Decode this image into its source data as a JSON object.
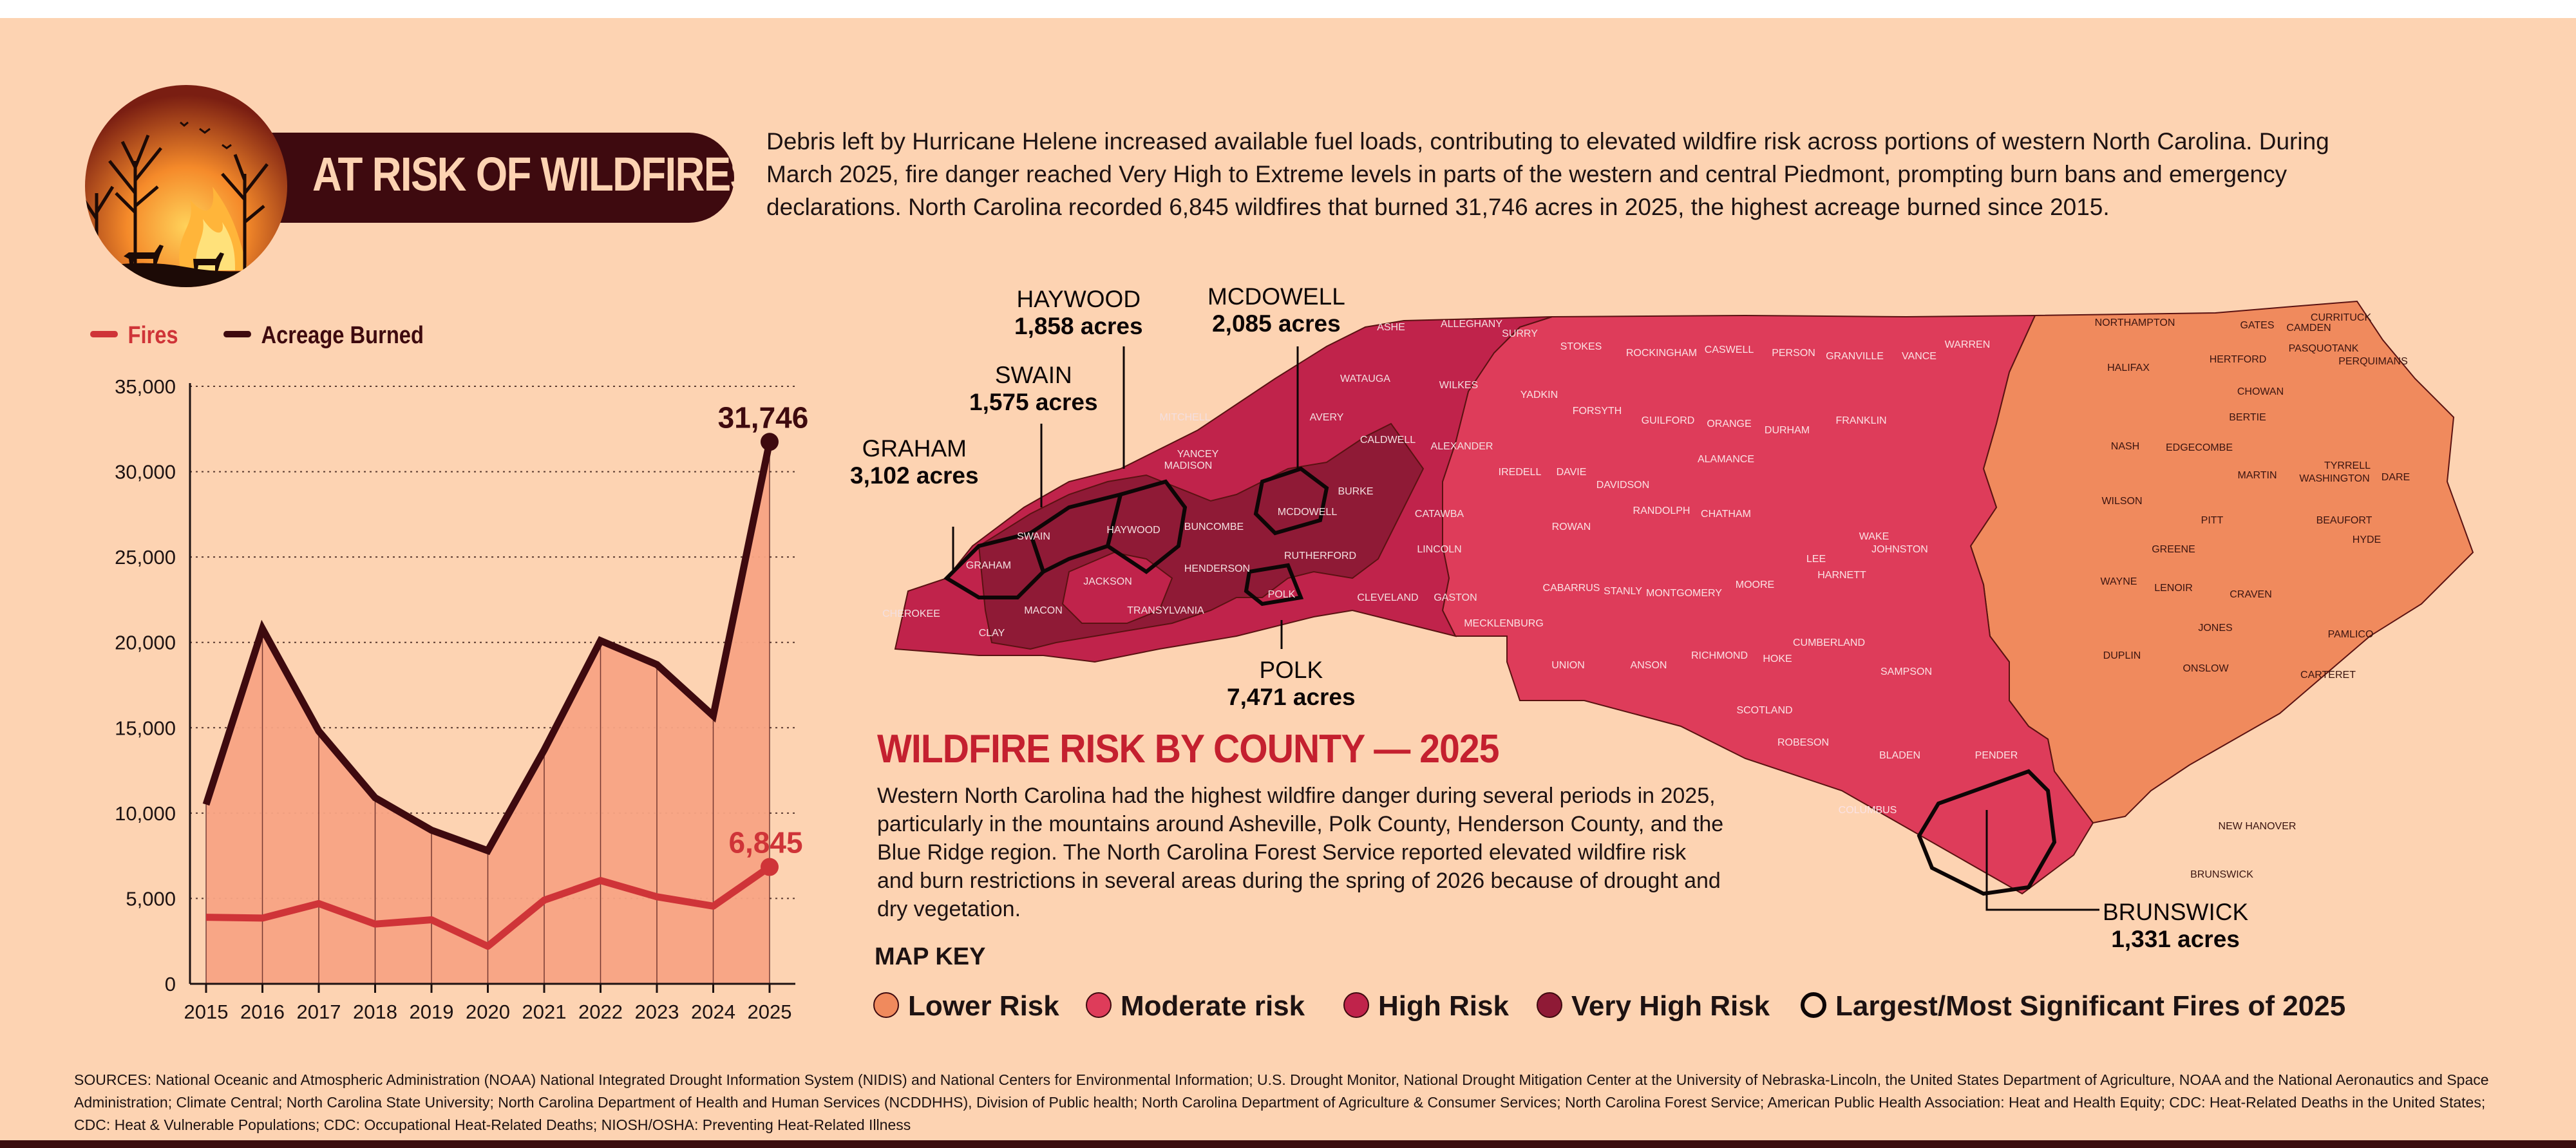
{
  "header": {
    "title": "AT RISK OF WILDFIRES",
    "intro": "Debris left by Hurricane Helene increased available fuel loads, contributing to elevated wildfire risk across portions of western North Carolina. During March 2025, fire danger reached Very High to Extreme levels in parts of the western and central Piedmont, prompting burn bans and emergency declarations. North Carolina recorded 6,845 wildfires that burned 31,746 acres in 2025, the highest acreage burned since 2015."
  },
  "legend": {
    "fires_label": "Fires",
    "acreage_label": "Acreage Burned"
  },
  "colors": {
    "fires": "#cf3438",
    "acreage": "#3e0a0f",
    "area_fill": "#f8a384",
    "lower": "#f08a5d",
    "moderate": "#de3c5a",
    "high": "#c0234b",
    "very_high": "#8f1a36",
    "background": "#fdd3b2"
  },
  "chart_data": {
    "type": "line",
    "x": [
      "2015",
      "2016",
      "2017",
      "2018",
      "2019",
      "2020",
      "2021",
      "2022",
      "2023",
      "2024",
      "2025"
    ],
    "series": [
      {
        "name": "Fires",
        "values": [
          3900,
          3850,
          4700,
          3500,
          3750,
          2200,
          4900,
          6050,
          5100,
          4550,
          6845
        ]
      },
      {
        "name": "Acreage Burned",
        "values": [
          10500,
          20800,
          14800,
          10900,
          9000,
          7800,
          13700,
          20100,
          18700,
          15700,
          31746
        ]
      }
    ],
    "y_ticks": [
      "0",
      "5,000",
      "10,000",
      "15,000",
      "20,000",
      "25,000",
      "30,000",
      "35,000"
    ],
    "ylim": [
      0,
      35000
    ],
    "grid": "horizontal dotted",
    "end_labels": {
      "fires": "6,845",
      "acreage": "31,746"
    },
    "area_under": "Acreage Burned"
  },
  "map": {
    "callouts": [
      {
        "county": "HAYWOOD",
        "acres": "1,858 acres"
      },
      {
        "county": "MCDOWELL",
        "acres": "2,085 acres"
      },
      {
        "county": "SWAIN",
        "acres": "1,575 acres"
      },
      {
        "county": "GRAHAM",
        "acres": "3,102 acres"
      },
      {
        "county": "POLK",
        "acres": "7,471 acres"
      },
      {
        "county": "BRUNSWICK",
        "acres": "1,331 acres"
      }
    ],
    "west_labels": [
      "GRAHAM",
      "SWAIN",
      "HAYWOOD",
      "CHEROKEE",
      "CLAY",
      "MACON",
      "JACKSON",
      "TRANSYLVANIA",
      "HENDERSON",
      "BUNCOMBE",
      "MADISON",
      "YANCEY",
      "MITCHELL",
      "AVERY",
      "MCDOWELL",
      "BURKE",
      "RUTHERFORD",
      "POLK",
      "CLEVELAND",
      "GASTON",
      "LINCOLN",
      "CATAWBA",
      "CALDWELL",
      "WATAUGA",
      "ASHE",
      "ALLEGHANY",
      "WILKES",
      "SURRY",
      "ALEXANDER"
    ],
    "central_labels": [
      "STOKES",
      "ROCKINGHAM",
      "CASWELL",
      "PERSON",
      "GRANVILLE",
      "VANCE",
      "WARREN",
      "YADKIN",
      "FORSYTH",
      "GUILFORD",
      "ALAMANCE",
      "ORANGE",
      "DURHAM",
      "FRANKLIN",
      "IREDELL",
      "DAVIE",
      "DAVIDSON",
      "RANDOLPH",
      "CHATHAM",
      "WAKE",
      "ROWAN",
      "CABARRUS",
      "STANLY",
      "MONTGOMERY",
      "MOORE",
      "LEE",
      "HARNETT",
      "JOHNSTON",
      "MECKLENBURG",
      "UNION",
      "ANSON",
      "RICHMOND",
      "HOKE",
      "CUMBERLAND",
      "SAMPSON",
      "SCOTLAND",
      "ROBESON",
      "BLADEN",
      "COLUMBUS",
      "PENDER"
    ],
    "east_labels": [
      "NORTHAMPTON",
      "GATES",
      "CAMDEN",
      "CURRITUCK",
      "PASQUOTANK",
      "PERQUIMANS",
      "HERTFORD",
      "CHOWAN",
      "HALIFAX",
      "BERTIE",
      "NASH",
      "EDGECOMBE",
      "MARTIN",
      "WASHINGTON",
      "TYRRELL",
      "DARE",
      "WILSON",
      "PITT",
      "BEAUFORT",
      "HYDE",
      "WAYNE",
      "GREENE",
      "LENOIR",
      "CRAVEN",
      "PAMLICO",
      "JONES",
      "DUPLIN",
      "ONSLOW",
      "CARTERET",
      "NEW HANOVER",
      "BRUNSWICK"
    ]
  },
  "section": {
    "title": "WILDFIRE RISK BY COUNTY — 2025",
    "body": "Western North Carolina had the highest wildfire danger during several periods in 2025, particularly in the mountains around Asheville, Polk County, Henderson County, and the Blue Ridge region. The North Carolina Forest Service reported elevated wildfire risk and burn restrictions in several areas during the spring of 2026 because of drought and dry vegetation."
  },
  "map_key": {
    "title": "MAP KEY",
    "items": [
      {
        "label": "Lower Risk",
        "color": "#f08a5d"
      },
      {
        "label": "Moderate risk",
        "color": "#de3c5a"
      },
      {
        "label": "High Risk",
        "color": "#c0234b"
      },
      {
        "label": "Very High Risk",
        "color": "#8f1a36"
      },
      {
        "label": "Largest/Most Significant Fires of 2025",
        "color": "none"
      }
    ]
  },
  "sources": "SOURCES: National Oceanic and Atmospheric Administration (NOAA) National Integrated Drought Information System (NIDIS) and National Centers for Environmental Information; U.S. Drought Monitor, National Drought Mitigation Center at the University of Nebraska-Lincoln, the United States Department of Agriculture, NOAA and the National Aeronautics and Space Administration; Climate Central; North Carolina State University; North Carolina Department of Health and Human Services (NCDDHHS), Division of Public health; North Carolina Department of Agriculture & Consumer Services; North Carolina Forest Service; American Public Health Association: Heat and Health Equity; CDC: Heat-Related Deaths in the United States; CDC: Heat & Vulnerable Populations; CDC: Occupational Heat-Related Deaths; NIOSH/OSHA: Preventing Heat-Related Illness"
}
